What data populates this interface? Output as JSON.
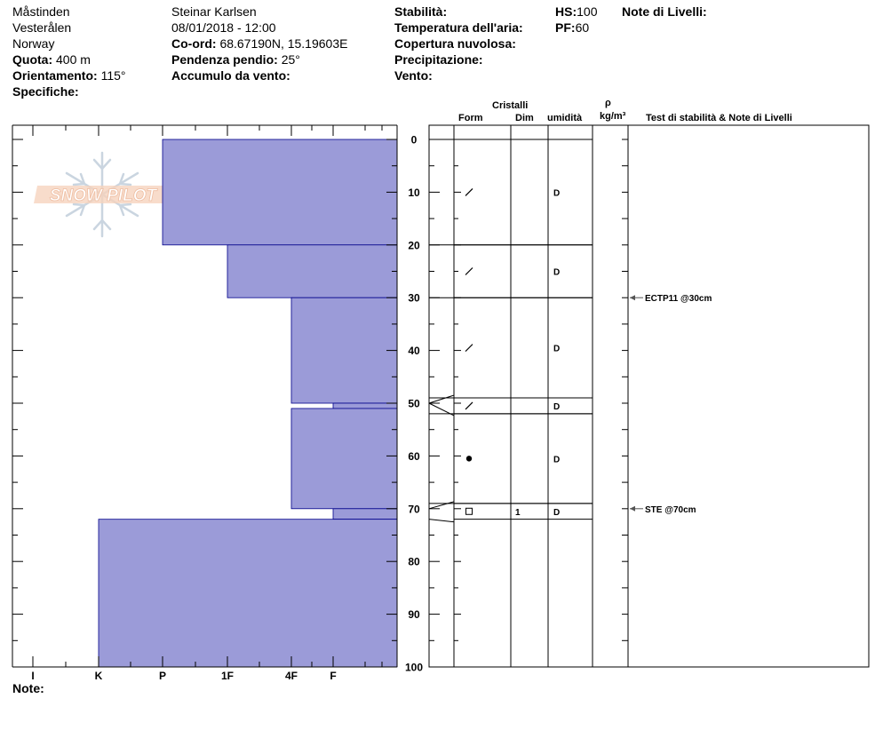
{
  "header": {
    "site": "Måstinden",
    "region": "Vesterålen",
    "country": "Norway",
    "elev_label": "Quota:",
    "elev_value": "400 m",
    "aspect_label": "Orientamento:",
    "aspect_value": "115°",
    "specifics_label": "Specifiche:",
    "observer": "Steinar Karlsen",
    "datetime": "08/01/2018 - 12:00",
    "coord_label": "Co-ord:",
    "coord_value": "68.67190N, 15.19603E",
    "slope_label": "Pendenza pendio:",
    "slope_value": "25°",
    "wind_loading_label": "Accumulo da vento:",
    "stability_label": "Stabilità:",
    "air_temp_label": "Temperatura dell'aria:",
    "cloud_label": "Copertura nuvolosa:",
    "precip_label": "Precipitazione:",
    "wind_label": "Vento:",
    "hs_label": "HS:",
    "hs_value": "100",
    "pf_label": "PF:",
    "pf_value": "60",
    "layer_notes_label": "Note di Livelli:"
  },
  "column_headers": {
    "crystals": "Cristalli",
    "form": "Form",
    "size": "Dim",
    "moisture": "umidità",
    "rho": "ρ",
    "density_unit": "kg/m³",
    "tests": "Test di stabilità & Note di Livelli"
  },
  "depth_ticks": [
    "0",
    "10",
    "20",
    "30",
    "40",
    "50",
    "60",
    "70",
    "80",
    "90",
    "100"
  ],
  "hardness_labels": [
    "I",
    "K",
    "P",
    "1F",
    "4F",
    "F"
  ],
  "notes_label": "Note:",
  "logo_text": "SNOW PILOT",
  "colors": {
    "hardness_fill": "#9b9bd8",
    "hardness_stroke": "#00008b"
  },
  "hardness_profile": [
    {
      "top": 0,
      "bottom": 20,
      "hardness": "P"
    },
    {
      "top": 20,
      "bottom": 30,
      "hardness": "1F"
    },
    {
      "top": 30,
      "bottom": 50,
      "hardness": "4F"
    },
    {
      "top": 50,
      "bottom": 51,
      "hardness": "F"
    },
    {
      "top": 51,
      "bottom": 70,
      "hardness": "4F"
    },
    {
      "top": 70,
      "bottom": 72,
      "hardness": "F"
    },
    {
      "top": 72,
      "bottom": 100,
      "hardness": "K"
    }
  ],
  "layers": [
    {
      "top": 0,
      "bottom": 20,
      "form": "decomposing-icon",
      "size": "",
      "moisture": "D"
    },
    {
      "top": 20,
      "bottom": 30,
      "form": "decomposing-icon",
      "size": "",
      "moisture": "D"
    },
    {
      "top": 30,
      "bottom": 49,
      "form": "decomposing-icon",
      "size": "",
      "moisture": "D"
    },
    {
      "top": 49,
      "bottom": 52,
      "form": "decomposing-icon",
      "size": "",
      "moisture": "D"
    },
    {
      "top": 52,
      "bottom": 69,
      "form": "rounded-grain-icon",
      "size": "",
      "moisture": "D"
    },
    {
      "top": 69,
      "bottom": 72,
      "form": "faceted-icon",
      "size": "1",
      "moisture": "D"
    }
  ],
  "tests": [
    {
      "depth": 30,
      "label": "ECTP11 @30cm"
    },
    {
      "depth": 70,
      "label": "STE @70cm"
    }
  ]
}
